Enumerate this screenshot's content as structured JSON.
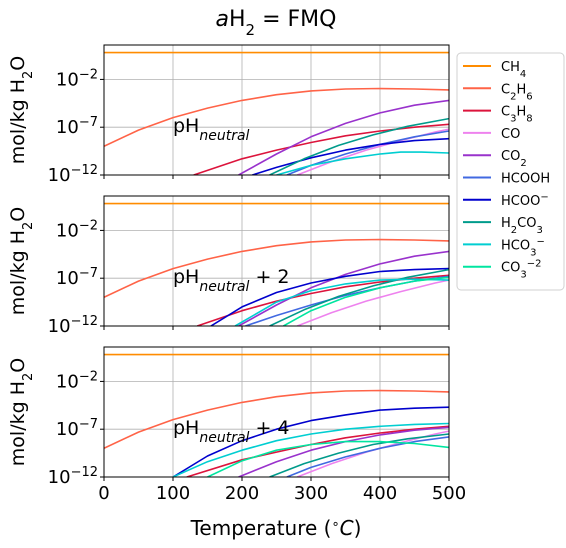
{
  "chart_data": {
    "type": "line",
    "title": {
      "italic": "a",
      "main": "H",
      "sub": "2",
      "tail": " = FMQ"
    },
    "xlabel": {
      "pre": "Temperature (",
      "sup": "∘",
      "italic": "C",
      "post": ")"
    },
    "ylabel": {
      "pre": "mol/kg H",
      "sub": "2",
      "post": "O"
    },
    "xlim": [
      0,
      500
    ],
    "xticks": [
      0,
      100,
      200,
      300,
      400,
      500
    ],
    "xtick_labels": [
      "0",
      "100",
      "200",
      "300",
      "400",
      "500"
    ],
    "ylim_log10": [
      -12,
      1.6
    ],
    "yticks_log10": [
      -12,
      -7,
      -2
    ],
    "ytick_labels": [
      {
        "base": "10",
        "exp": "−12"
      },
      {
        "base": "10",
        "exp": "−7"
      },
      {
        "base": "10",
        "exp": "−2"
      }
    ],
    "grid": true,
    "legend": {
      "placement": "outside-right",
      "entries": [
        {
          "key": "CH4",
          "label": "CH",
          "sub": "4",
          "sup": "",
          "color": "#ff8c00"
        },
        {
          "key": "C2H6",
          "label": "C",
          "sub": "2",
          "mid": "H",
          "sub2": "6",
          "sup": "",
          "color": "#ff6347"
        },
        {
          "key": "C3H8",
          "label": "C",
          "sub": "3",
          "mid": "H",
          "sub2": "8",
          "sup": "",
          "color": "#dc143c"
        },
        {
          "key": "CO",
          "label": "CO",
          "sub": "",
          "sup": "",
          "color": "#ee82ee"
        },
        {
          "key": "CO2",
          "label": "CO",
          "sub": "2",
          "sup": "",
          "color": "#9932cc"
        },
        {
          "key": "HCOOH",
          "label": "HCOOH",
          "sub": "",
          "sup": "",
          "color": "#4169e1"
        },
        {
          "key": "HCOO-",
          "label": "HCOO",
          "sub": "",
          "sup": "−",
          "color": "#0000cd"
        },
        {
          "key": "H2CO3",
          "label": "H",
          "sub": "2",
          "mid": "CO",
          "sub2": "3",
          "sup": "",
          "color": "#009b8b"
        },
        {
          "key": "HCO3-",
          "label": "HCO",
          "sub": "3",
          "sup": "−",
          "color": "#00ced1"
        },
        {
          "key": "CO3-2",
          "label": "CO",
          "sub": "3",
          "sup": "−2",
          "color": "#00e5a0"
        }
      ]
    },
    "panels": [
      {
        "annotation": {
          "main": "pH",
          "sub": "neutral",
          "tail": ""
        },
        "series": [
          {
            "key": "CH4",
            "x": [
              0,
              500
            ],
            "log10": [
              0.8,
              0.8
            ]
          },
          {
            "key": "C2H6",
            "x": [
              0,
              50,
              100,
              150,
              200,
              250,
              300,
              350,
              400,
              450,
              500
            ],
            "log10": [
              -9.0,
              -7.3,
              -6.0,
              -5.0,
              -4.2,
              -3.6,
              -3.2,
              -3.0,
              -2.95,
              -3.0,
              -3.1
            ]
          },
          {
            "key": "C3H8",
            "x": [
              130,
              200,
              250,
              300,
              350,
              400,
              450,
              500
            ],
            "log10": [
              -12.0,
              -10.3,
              -9.4,
              -8.6,
              -7.9,
              -7.4,
              -7.0,
              -6.7
            ]
          },
          {
            "key": "CO",
            "x": [
              280,
              330,
              380,
              430,
              480,
              500
            ],
            "log10": [
              -12.0,
              -10.6,
              -9.4,
              -8.4,
              -7.5,
              -7.2
            ]
          },
          {
            "key": "CO2",
            "x": [
              195,
              250,
              300,
              350,
              400,
              450,
              500
            ],
            "log10": [
              -12.0,
              -9.8,
              -8.0,
              -6.6,
              -5.5,
              -4.7,
              -4.2
            ]
          },
          {
            "key": "HCOOH",
            "x": [
              265,
              300,
              350,
              400,
              450,
              500
            ],
            "log10": [
              -12.0,
              -11.0,
              -9.8,
              -8.8,
              -8.0,
              -7.4
            ]
          },
          {
            "key": "HCOO-",
            "x": [
              215,
              250,
              300,
              350,
              400,
              450,
              500
            ],
            "log10": [
              -12.0,
              -11.2,
              -10.2,
              -9.4,
              -8.8,
              -8.4,
              -8.2
            ]
          },
          {
            "key": "H2CO3",
            "x": [
              240,
              290,
              340,
              390,
              440,
              500
            ],
            "log10": [
              -12.0,
              -10.3,
              -8.9,
              -7.8,
              -6.9,
              -6.1
            ]
          },
          {
            "key": "HCO3-",
            "x": [
              250,
              300,
              350,
              400,
              430,
              460,
              500
            ],
            "log10": [
              -12.0,
              -11.0,
              -10.3,
              -9.8,
              -9.6,
              -9.6,
              -9.7
            ]
          }
        ]
      },
      {
        "annotation": {
          "main": "pH",
          "sub": "neutral",
          "tail": " + 2"
        },
        "series": [
          {
            "key": "CH4",
            "x": [
              0,
              500
            ],
            "log10": [
              0.8,
              0.8
            ]
          },
          {
            "key": "C2H6",
            "x": [
              0,
              50,
              100,
              150,
              200,
              250,
              300,
              350,
              400,
              450,
              500
            ],
            "log10": [
              -9.0,
              -7.3,
              -6.0,
              -5.0,
              -4.2,
              -3.6,
              -3.2,
              -3.0,
              -2.95,
              -3.0,
              -3.1
            ]
          },
          {
            "key": "C3H8",
            "x": [
              135,
              200,
              250,
              300,
              350,
              400,
              450,
              500
            ],
            "log10": [
              -12.0,
              -10.4,
              -9.4,
              -8.6,
              -7.9,
              -7.4,
              -7.0,
              -6.7
            ]
          },
          {
            "key": "CO",
            "x": [
              280,
              330,
              380,
              430,
              480,
              500
            ],
            "log10": [
              -12.0,
              -10.6,
              -9.4,
              -8.4,
              -7.5,
              -7.2
            ]
          },
          {
            "key": "CO2",
            "x": [
              195,
              250,
              300,
              350,
              400,
              450,
              500
            ],
            "log10": [
              -12.0,
              -9.8,
              -8.0,
              -6.6,
              -5.5,
              -4.7,
              -4.2
            ]
          },
          {
            "key": "HCOOH",
            "x": [
              205,
              250,
              300,
              350,
              400,
              450,
              500
            ],
            "log10": [
              -12.0,
              -10.9,
              -9.8,
              -8.8,
              -8.0,
              -7.3,
              -6.8
            ]
          },
          {
            "key": "HCOO-",
            "x": [
              155,
              200,
              250,
              300,
              350,
              400,
              450,
              500
            ],
            "log10": [
              -12.0,
              -10.0,
              -8.5,
              -7.5,
              -6.8,
              -6.3,
              -6.1,
              -6.0
            ]
          },
          {
            "key": "H2CO3",
            "x": [
              240,
              290,
              340,
              390,
              440,
              500
            ],
            "log10": [
              -12.0,
              -10.3,
              -8.9,
              -7.8,
              -6.9,
              -6.1
            ]
          },
          {
            "key": "HCO3-",
            "x": [
              190,
              250,
              300,
              350,
              400,
              450,
              500
            ],
            "log10": [
              -12.0,
              -9.5,
              -8.3,
              -7.6,
              -7.2,
              -7.1,
              -7.2
            ]
          },
          {
            "key": "CO3-2",
            "x": [
              260,
              300,
              350,
              400,
              450,
              500
            ],
            "log10": [
              -12.0,
              -10.4,
              -9.0,
              -8.0,
              -7.3,
              -6.9
            ]
          }
        ]
      },
      {
        "annotation": {
          "main": "pH",
          "sub": "neutral",
          "tail": " + 4"
        },
        "series": [
          {
            "key": "CH4",
            "x": [
              0,
              500
            ],
            "log10": [
              0.8,
              0.8
            ]
          },
          {
            "key": "C2H6",
            "x": [
              0,
              50,
              100,
              150,
              200,
              250,
              300,
              350,
              400,
              450,
              500
            ],
            "log10": [
              -9.0,
              -7.3,
              -6.0,
              -5.0,
              -4.2,
              -3.6,
              -3.2,
              -3.0,
              -2.95,
              -3.0,
              -3.1
            ]
          },
          {
            "key": "C3H8",
            "x": [
              120,
              200,
              250,
              300,
              350,
              400,
              450,
              500
            ],
            "log10": [
              -12.0,
              -10.2,
              -9.4,
              -8.6,
              -7.9,
              -7.4,
              -7.0,
              -6.7
            ]
          },
          {
            "key": "CO",
            "x": [
              280,
              330,
              380,
              430,
              480,
              500
            ],
            "log10": [
              -12.0,
              -10.6,
              -9.4,
              -8.4,
              -7.5,
              -7.2
            ]
          },
          {
            "key": "CO2",
            "x": [
              195,
              250,
              300,
              350,
              400,
              450,
              500
            ],
            "log10": [
              -12.0,
              -10.4,
              -9.2,
              -8.3,
              -7.6,
              -7.1,
              -6.8
            ]
          },
          {
            "key": "HCOOH",
            "x": [
              265,
              300,
              350,
              400,
              450,
              500
            ],
            "log10": [
              -12.0,
              -11.0,
              -9.9,
              -9.0,
              -8.3,
              -7.8
            ]
          },
          {
            "key": "HCOO-",
            "x": [
              100,
              150,
              200,
              250,
              300,
              350,
              400,
              450,
              500
            ],
            "log10": [
              -12.0,
              -9.8,
              -8.2,
              -7.0,
              -6.1,
              -5.5,
              -5.0,
              -4.8,
              -4.7
            ]
          },
          {
            "key": "H2CO3",
            "x": [
              240,
              290,
              340,
              390,
              440,
              500
            ],
            "log10": [
              -12.0,
              -10.6,
              -9.5,
              -8.6,
              -8.0,
              -7.5
            ]
          },
          {
            "key": "HCO3-",
            "x": [
              100,
              150,
              200,
              250,
              300,
              350,
              400,
              450,
              500
            ],
            "log10": [
              -12.0,
              -10.4,
              -9.2,
              -8.2,
              -7.5,
              -7.0,
              -6.7,
              -6.5,
              -6.4
            ]
          },
          {
            "key": "CO3-2",
            "x": [
              150,
              200,
              250,
              300,
              350,
              400,
              450,
              500
            ],
            "log10": [
              -12.0,
              -10.3,
              -9.2,
              -8.6,
              -8.3,
              -8.3,
              -8.5,
              -8.9
            ]
          }
        ]
      }
    ]
  }
}
